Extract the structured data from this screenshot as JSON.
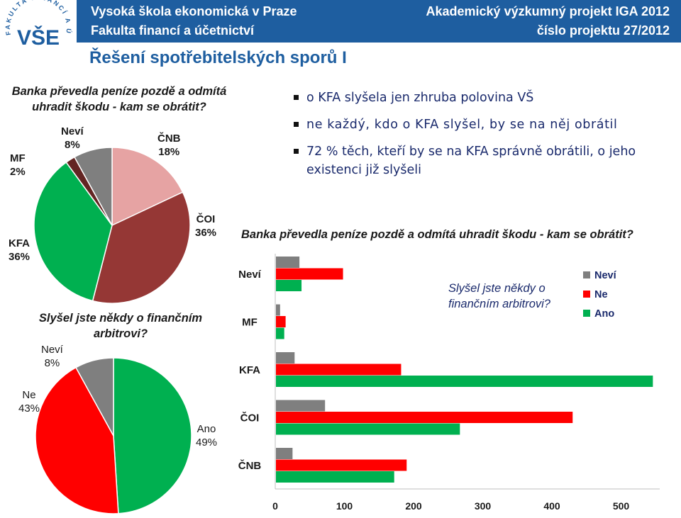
{
  "header": {
    "school": "Vysoká škola ekonomická v Praze",
    "faculty": "Fakulta financí a účetnictví",
    "project": "Akademický výzkumný projekt IGA 2012",
    "project_no": "číslo projektu 27/2012",
    "band_color": "#1e5ea0"
  },
  "logo": {
    "ring_text": "FAKULTA FINANCÍ A ÚČETNICTVÍ",
    "mark": "VŠE"
  },
  "slide_title": "Řešení spotřebitelských sporů I",
  "bullets": [
    "o KFA slyšela jen zhruba polovina VŠ",
    "ne každý, kdo o KFA slyšel, by se na něj obrátil",
    "72 % těch, kteří by se na KFA správně obrátili, o jeho existenci již slyšeli"
  ],
  "chart_data": [
    {
      "type": "pie",
      "title": "Banka převedla peníze pozdě a odmítá uhradit škodu - kam se obrátit?",
      "slices": [
        {
          "label": "ČNB",
          "value": 18,
          "text": "18%",
          "color": "#e6a3a3"
        },
        {
          "label": "ČOI",
          "value": 36,
          "text": "36%",
          "color": "#953735"
        },
        {
          "label": "KFA",
          "value": 36,
          "text": "36%",
          "color": "#00b050"
        },
        {
          "label": "MF",
          "value": 2,
          "text": "2%",
          "color": "#632523"
        },
        {
          "label": "Neví",
          "value": 8,
          "text": "8%",
          "color": "#7f7f7f"
        }
      ]
    },
    {
      "type": "pie",
      "title": "Slyšel jste někdy o finančním arbitrovi?",
      "slices": [
        {
          "label": "Ano",
          "value": 49,
          "text": "49%",
          "color": "#00b050"
        },
        {
          "label": "Ne",
          "value": 43,
          "text": "43%",
          "color": "#ff0000"
        },
        {
          "label": "Neví",
          "value": 8,
          "text": "8%",
          "color": "#7f7f7f"
        }
      ]
    },
    {
      "type": "bar",
      "orientation": "horizontal",
      "title": "Banka převedla peníze pozdě a odmítá uhradit škodu - kam se obrátit?",
      "legend_title": "Slyšel jste někdy o finančním arbitrovi?",
      "legend_position": "top-right",
      "categories": [
        "Neví",
        "MF",
        "KFA",
        "ČOI",
        "ČNB"
      ],
      "series": [
        {
          "name": "Neví",
          "color": "#7f7f7f",
          "values": [
            35,
            7,
            28,
            72,
            25
          ]
        },
        {
          "name": "Ne",
          "color": "#ff0000",
          "values": [
            98,
            15,
            182,
            430,
            190
          ]
        },
        {
          "name": "Ano",
          "color": "#00b050",
          "values": [
            38,
            13,
            546,
            267,
            172
          ]
        }
      ],
      "xlim": [
        0,
        550
      ],
      "xticks": [
        "0",
        "100",
        "200",
        "300",
        "400",
        "500"
      ]
    }
  ]
}
